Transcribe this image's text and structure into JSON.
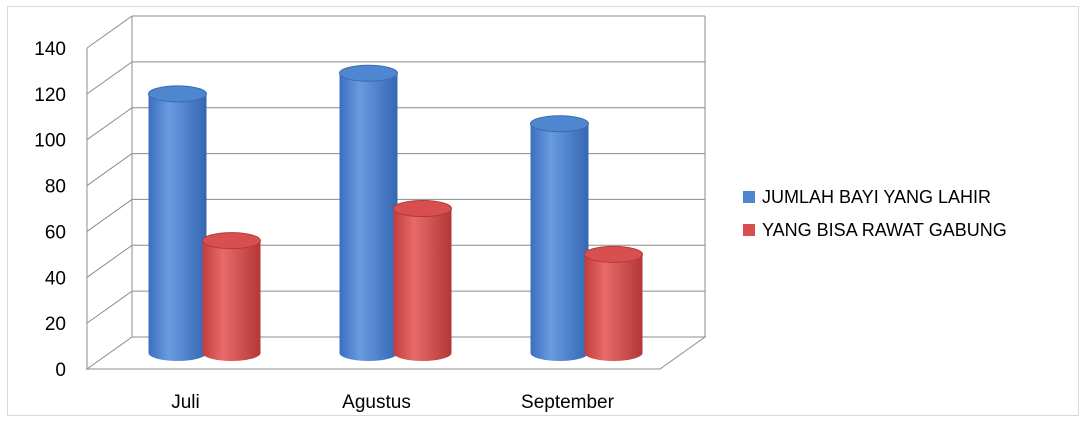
{
  "chart_data": {
    "type": "bar",
    "title": "",
    "xlabel": "",
    "ylabel": "",
    "categories": [
      "Juli",
      "Agustus",
      "September"
    ],
    "ylim": [
      0,
      140
    ],
    "yticks": [
      0,
      20,
      40,
      60,
      80,
      100,
      120,
      140
    ],
    "grid": true,
    "three_d": true,
    "bar_shape": "cylinder",
    "legend_position": "right",
    "series": [
      {
        "name": "JUMLAH BAYI YANG LAHIR",
        "values": [
          113,
          122,
          100
        ],
        "color": "#4f86d0"
      },
      {
        "name": "YANG BISA RAWAT GABUNG",
        "values": [
          49,
          63,
          43
        ],
        "color": "#d94f4f"
      }
    ]
  }
}
